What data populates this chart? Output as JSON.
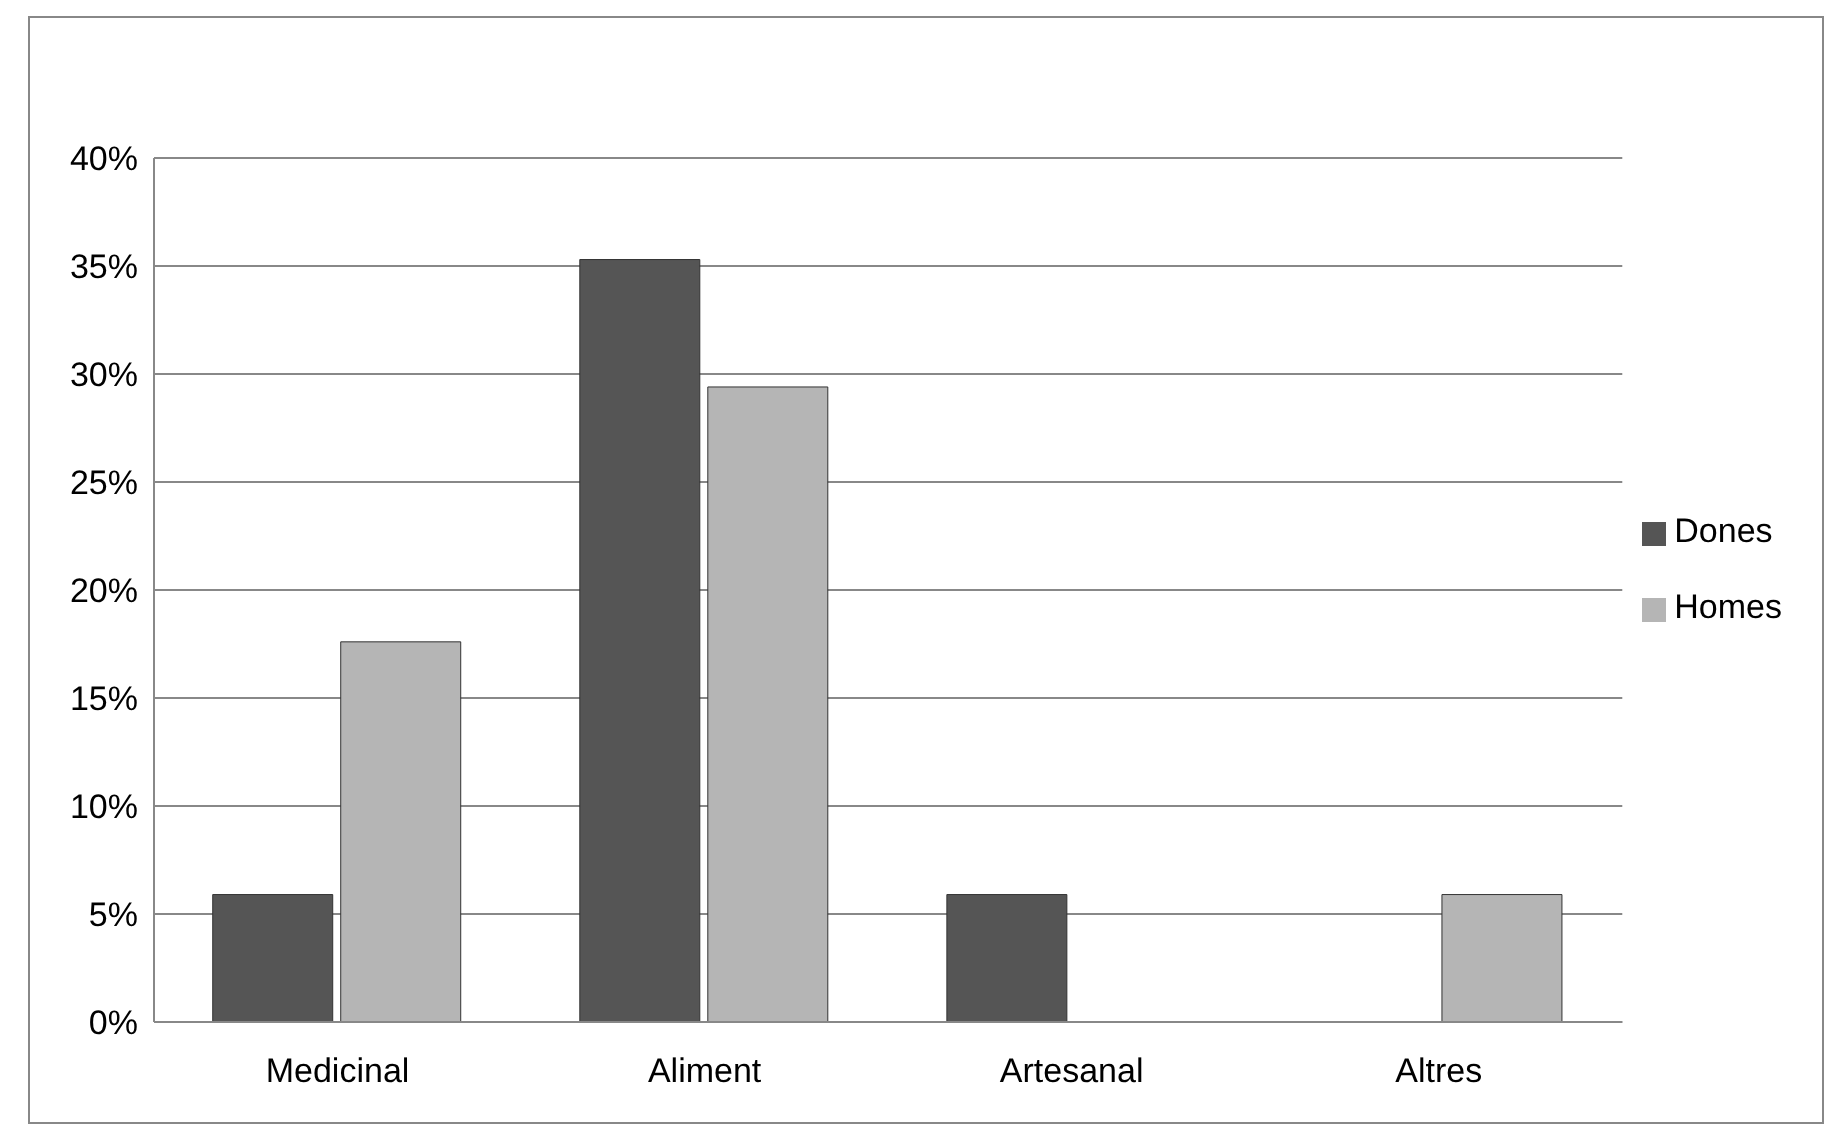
{
  "chart_data": {
    "type": "bar",
    "categories": [
      "Medicinal",
      "Aliment",
      "Artesanal",
      "Altres"
    ],
    "series": [
      {
        "name": "Dones",
        "color": "#555555",
        "values": [
          5.9,
          35.3,
          5.9,
          0
        ]
      },
      {
        "name": "Homes",
        "color": "#b5b5b5",
        "values": [
          17.6,
          29.4,
          0,
          5.9
        ]
      }
    ],
    "ylim": [
      0,
      40
    ],
    "yticks": [
      {
        "value": 0,
        "label": "0%"
      },
      {
        "value": 5,
        "label": "5%"
      },
      {
        "value": 10,
        "label": "10%"
      },
      {
        "value": 15,
        "label": "15%"
      },
      {
        "value": 20,
        "label": "20%"
      },
      {
        "value": 25,
        "label": "25%"
      },
      {
        "value": 30,
        "label": "30%"
      },
      {
        "value": 35,
        "label": "35%"
      },
      {
        "value": 40,
        "label": "40%"
      }
    ],
    "grid": "y",
    "legend": "right"
  }
}
